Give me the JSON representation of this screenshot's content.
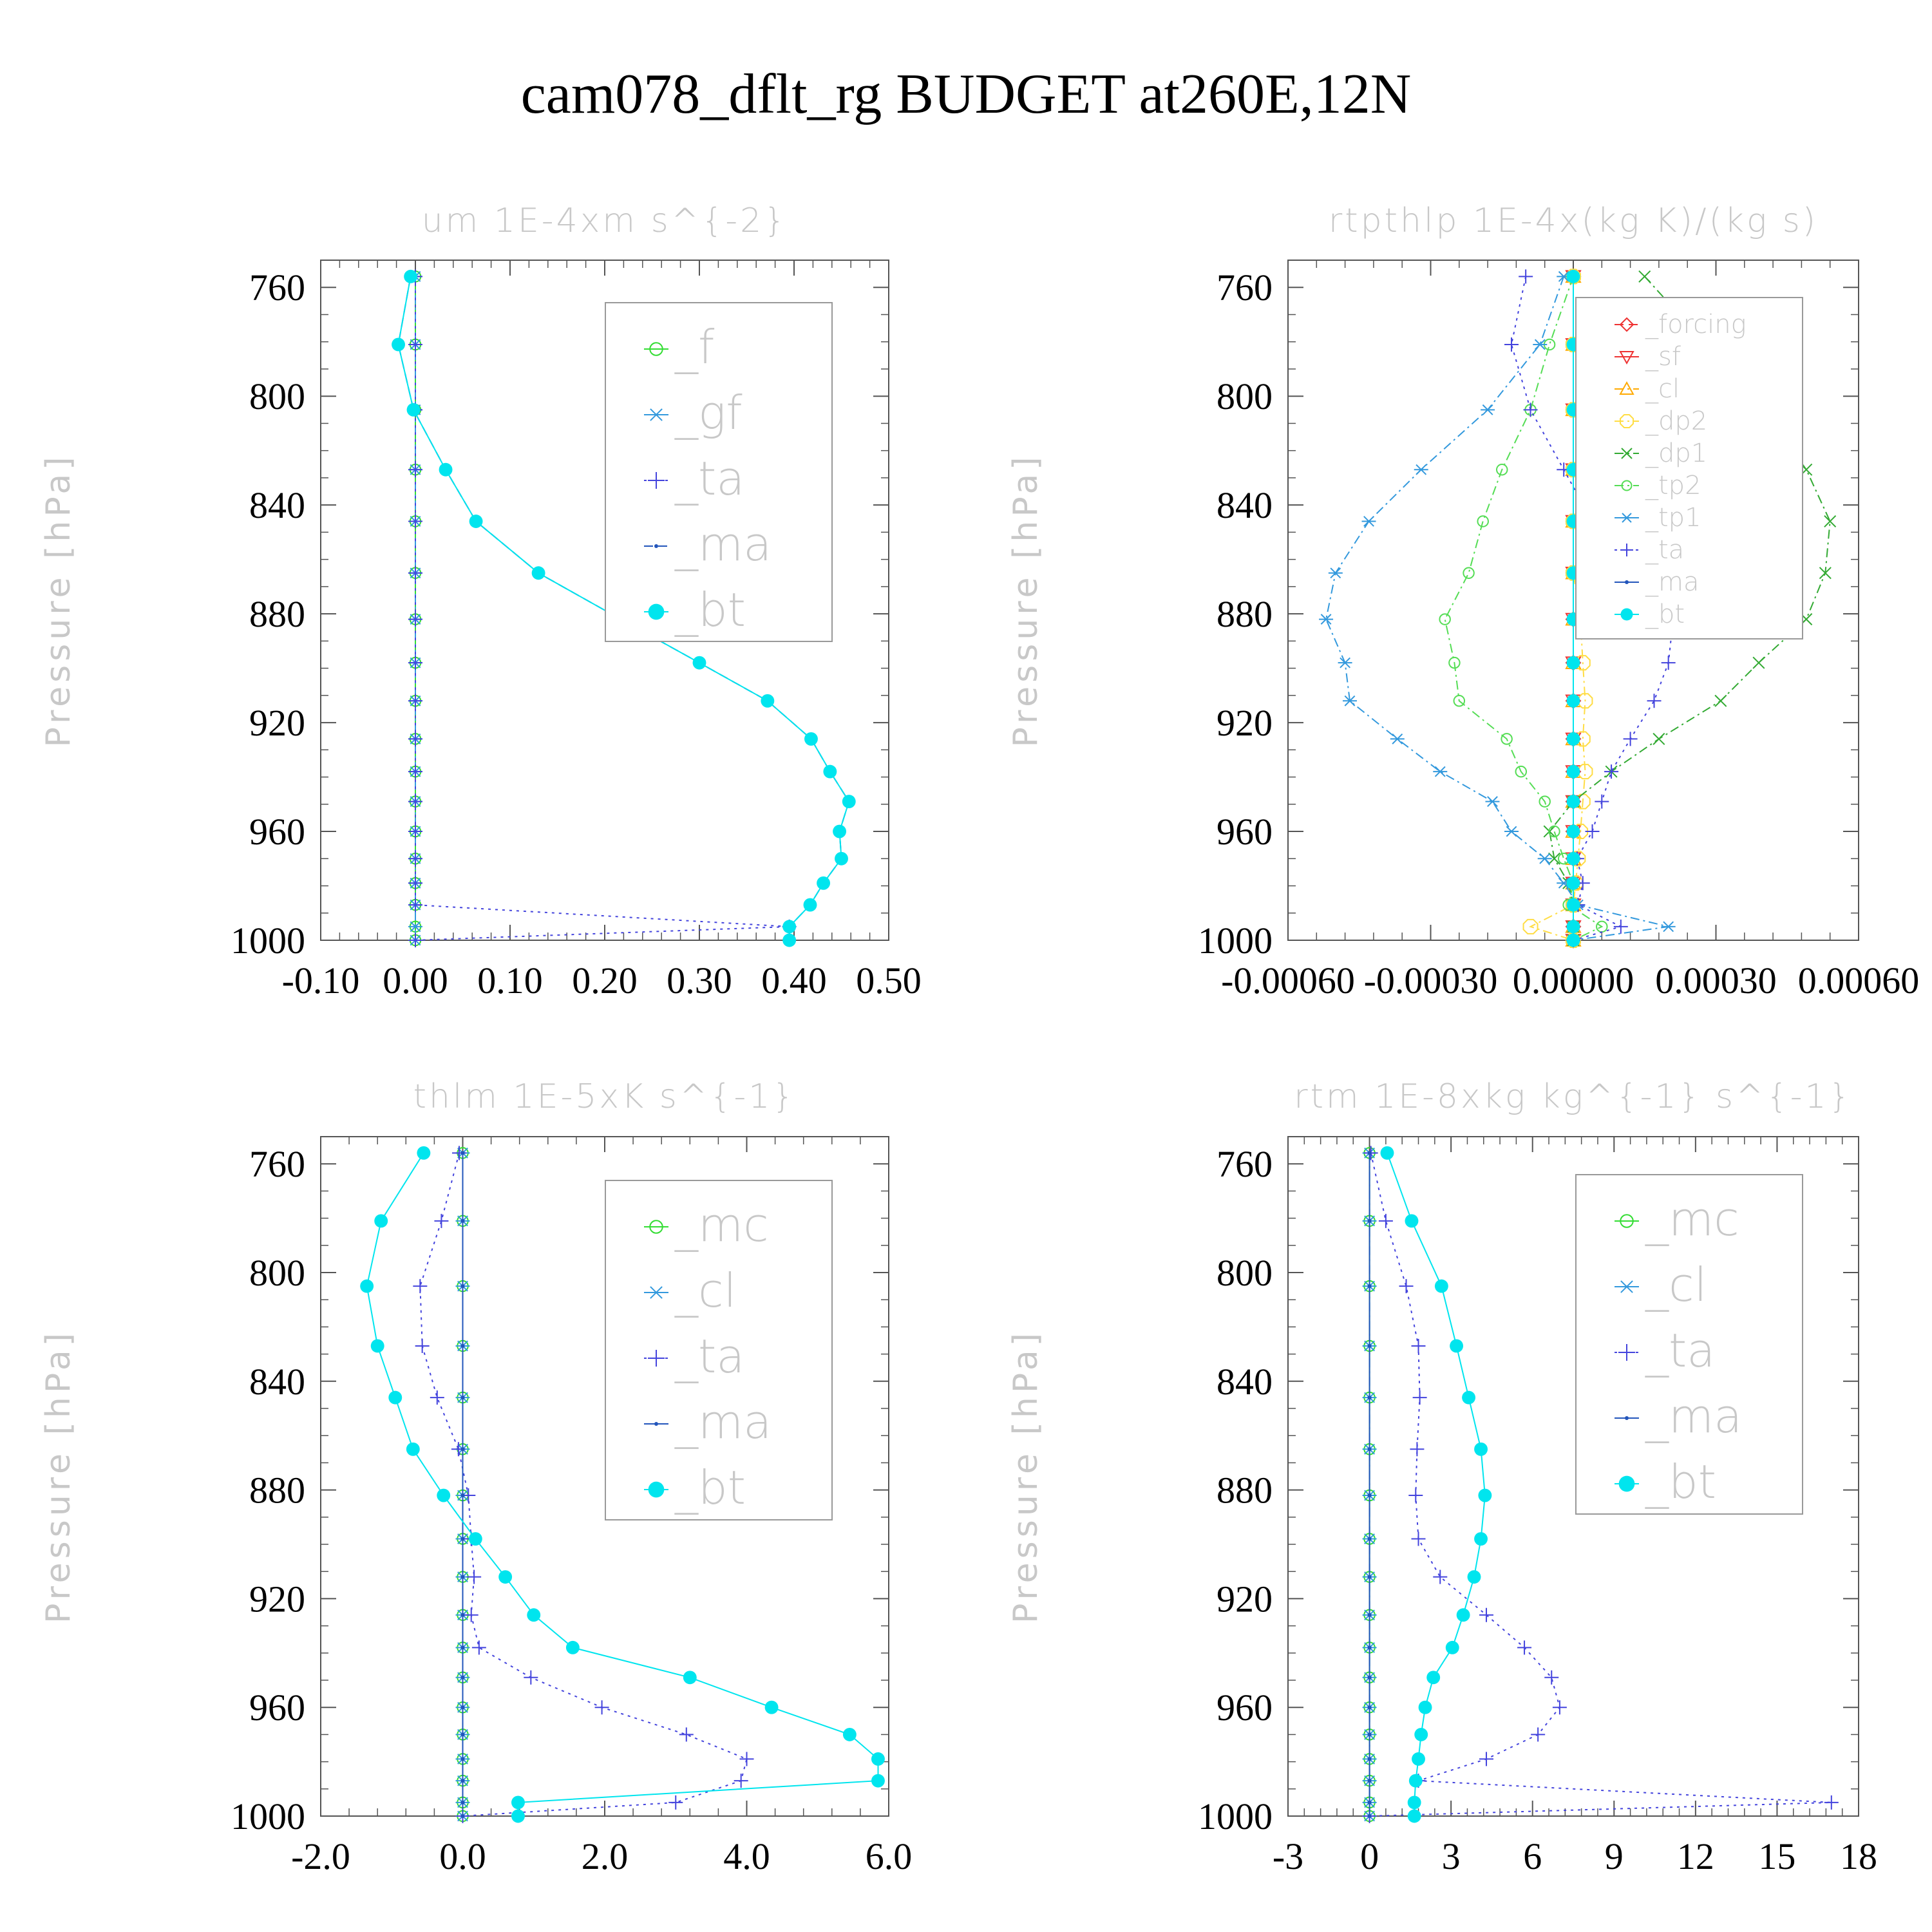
{
  "title": "cam078_dflt_rg  BUDGET at260E,12N",
  "chart_data": [
    {
      "type": "line",
      "title": "um  1E-4xm s^{-2}",
      "ylabel": "Pressure [hPa]",
      "xlim": [
        -0.1,
        0.5
      ],
      "ylim": [
        1000,
        750
      ],
      "xticks": [
        "-0.10",
        "0.00",
        "0.10",
        "0.20",
        "0.30",
        "0.40",
        "0.50"
      ],
      "yticks": [
        "760",
        "800",
        "840",
        "880",
        "920",
        "960",
        "1000"
      ],
      "legend": "top-right",
      "pressure": [
        756,
        781,
        805,
        827,
        846,
        865,
        882,
        898,
        912,
        926,
        938,
        949,
        960,
        970,
        979,
        987,
        995,
        1000
      ],
      "series": [
        {
          "name": "_f",
          "color": "#33dd33",
          "marker": "circle-open",
          "dash": "none",
          "values": [
            0,
            0,
            0,
            0,
            0,
            0,
            0,
            0,
            0,
            0,
            0,
            0,
            0,
            0,
            0,
            0,
            0,
            0
          ]
        },
        {
          "name": "_gf",
          "color": "#3399dd",
          "marker": "asterisk",
          "dash": "dashdot",
          "values": [
            0,
            0,
            0,
            0,
            0,
            0,
            0,
            0,
            0,
            0,
            0,
            0,
            0,
            0,
            0,
            0,
            0,
            0
          ]
        },
        {
          "name": "_ta",
          "color": "#4444dd",
          "marker": "plus",
          "dash": "dot",
          "values": [
            0,
            0,
            0,
            0,
            0,
            0,
            0,
            0,
            0,
            0,
            0,
            0,
            0,
            0,
            0,
            0,
            0.395,
            0
          ]
        },
        {
          "name": "_ma",
          "color": "#2255bb",
          "marker": "dot",
          "dash": "dash",
          "values": [
            -0.005,
            -0.018,
            -0.002,
            0.032,
            0.064,
            0.13,
            0.217,
            0.3,
            0.372,
            0.418,
            0.438,
            0.458,
            0.448,
            0.45,
            0.431,
            0.417,
            0.395,
            0.395
          ]
        },
        {
          "name": "_bt",
          "color": "#00e5ee",
          "marker": "disc",
          "dash": "none",
          "values": [
            -0.005,
            -0.018,
            -0.002,
            0.032,
            0.064,
            0.13,
            0.217,
            0.3,
            0.372,
            0.418,
            0.438,
            0.458,
            0.448,
            0.45,
            0.431,
            0.417,
            0.395,
            0.395
          ]
        }
      ]
    },
    {
      "type": "line",
      "title": "rtpthlp  1E-4x(kg K)/(kg s)",
      "ylabel": "Pressure [hPa]",
      "xlim": [
        -0.0006,
        0.0006
      ],
      "ylim": [
        1000,
        750
      ],
      "xticks": [
        "-0.00060",
        "-0.00030",
        "0.00000",
        "0.00030",
        "0.00060"
      ],
      "yticks": [
        "760",
        "800",
        "840",
        "880",
        "920",
        "960",
        "1000"
      ],
      "legend": "top-right",
      "pressure": [
        756,
        781,
        805,
        827,
        846,
        865,
        882,
        898,
        912,
        926,
        938,
        949,
        960,
        970,
        979,
        987,
        995,
        1000
      ],
      "series": [
        {
          "name": "_forcing",
          "color": "#ee3333",
          "marker": "diamond",
          "dash": "dash",
          "values": [
            0,
            0,
            0,
            0,
            0,
            0,
            0,
            0,
            0,
            0,
            0,
            0,
            0,
            0,
            0,
            0,
            0,
            0
          ]
        },
        {
          "name": "_sf",
          "color": "#ee3333",
          "marker": "triangle-down",
          "dash": "none",
          "values": [
            0,
            0,
            0,
            0,
            0,
            0,
            0,
            0,
            0,
            0,
            0,
            0,
            0,
            0,
            0,
            0,
            0,
            0
          ]
        },
        {
          "name": "_cl",
          "color": "#ffaa00",
          "marker": "triangle-up",
          "dash": "dashdot",
          "values": [
            0,
            0,
            0,
            0,
            0,
            0,
            0,
            0,
            0,
            0,
            0,
            0,
            0,
            0,
            0,
            0,
            0,
            0
          ]
        },
        {
          "name": "_dp2",
          "color": "#ffdd44",
          "marker": "octagon",
          "dash": "dashdot",
          "values": [
            0,
            0,
            0,
            0,
            0,
            0,
            1.5e-05,
            2e-05,
            2.5e-05,
            2e-05,
            2.5e-05,
            2e-05,
            1.5e-05,
            1e-05,
            5e-06,
            0,
            -9e-05,
            0
          ]
        },
        {
          "name": "_dp1",
          "color": "#33aa33",
          "marker": "cross",
          "dash": "dashdot",
          "values": [
            0.00015,
            0.00028,
            0.0004,
            0.00049,
            0.00054,
            0.00053,
            0.00049,
            0.00039,
            0.00031,
            0.00018,
            8e-05,
            0,
            -5e-05,
            -4e-05,
            -1e-05,
            0,
            0,
            0
          ]
        },
        {
          "name": "_tp2",
          "color": "#55dd55",
          "marker": "circle-open",
          "dash": "dashdot",
          "values": [
            0,
            -5e-05,
            -9e-05,
            -0.00015,
            -0.00019,
            -0.00022,
            -0.00027,
            -0.00025,
            -0.00024,
            -0.00014,
            -0.00011,
            -6e-05,
            -4e-05,
            -2e-05,
            0,
            -1e-05,
            6e-05,
            0
          ]
        },
        {
          "name": "_tp1",
          "color": "#3399dd",
          "marker": "asterisk",
          "dash": "dashdot",
          "values": [
            -2e-05,
            -7e-05,
            -0.00018,
            -0.00032,
            -0.00043,
            -0.0005,
            -0.00052,
            -0.00048,
            -0.00047,
            -0.00037,
            -0.00028,
            -0.00017,
            -0.00013,
            -6e-05,
            -2e-05,
            1e-05,
            0.0002,
            0
          ]
        },
        {
          "name": "_ta",
          "color": "#4444dd",
          "marker": "plus",
          "dash": "dot",
          "values": [
            -0.0001,
            -0.00013,
            -9e-05,
            -2e-05,
            4e-05,
            0.0002,
            0.00021,
            0.0002,
            0.00017,
            0.00012,
            8e-05,
            6e-05,
            4e-05,
            8e-06,
            2e-05,
            1e-05,
            0.0001,
            0
          ]
        },
        {
          "name": "_ma",
          "color": "#2255bb",
          "marker": "dot",
          "dash": "none",
          "values": [
            0,
            0,
            0,
            0,
            0,
            0,
            0,
            0,
            0,
            0,
            0,
            0,
            0,
            0,
            0,
            0,
            0,
            0
          ]
        },
        {
          "name": "_bt",
          "color": "#00e5ee",
          "marker": "disc",
          "dash": "none",
          "values": [
            0,
            0,
            0,
            0,
            0,
            0,
            0,
            0,
            0,
            0,
            0,
            0,
            0,
            0,
            0,
            0,
            0,
            0
          ]
        }
      ]
    },
    {
      "type": "line",
      "title": "thlm  1E-5xK s^{-1}",
      "ylabel": "Pressure [hPa]",
      "xlim": [
        -2.0,
        6.0
      ],
      "ylim": [
        1000,
        750
      ],
      "xticks": [
        "-2.0",
        "0.0",
        "2.0",
        "4.0",
        "6.0"
      ],
      "yticks": [
        "760",
        "800",
        "840",
        "880",
        "920",
        "960",
        "1000"
      ],
      "legend": "top-right",
      "pressure": [
        756,
        781,
        805,
        827,
        846,
        865,
        882,
        898,
        912,
        926,
        938,
        949,
        960,
        970,
        979,
        987,
        995,
        1000
      ],
      "series": [
        {
          "name": "_mc",
          "color": "#33dd33",
          "marker": "circle-open",
          "dash": "none",
          "values": [
            0,
            0,
            0,
            0,
            0,
            0,
            0,
            0,
            0,
            0,
            0,
            0,
            0,
            0,
            0,
            0,
            0,
            0
          ]
        },
        {
          "name": "_cl",
          "color": "#3399dd",
          "marker": "asterisk",
          "dash": "dashdot",
          "values": [
            0,
            0,
            0,
            0,
            0,
            0,
            0,
            0,
            0,
            0,
            0,
            0,
            0,
            0,
            0,
            0,
            0,
            0
          ]
        },
        {
          "name": "_ta",
          "color": "#4444dd",
          "marker": "plus",
          "dash": "dot",
          "values": [
            -0.05,
            -0.3,
            -0.6,
            -0.57,
            -0.36,
            -0.06,
            0.08,
            0.12,
            0.16,
            0.12,
            0.23,
            0.96,
            1.96,
            3.15,
            4.0,
            3.92,
            3.0,
            0
          ]
        },
        {
          "name": "_ma",
          "color": "#2255bb",
          "marker": "dot",
          "dash": "none",
          "values": [
            0,
            0,
            0,
            0,
            0,
            0,
            0,
            0,
            0,
            0,
            0,
            0,
            0,
            0,
            0,
            0,
            0,
            0
          ]
        },
        {
          "name": "_bt",
          "color": "#00e5ee",
          "marker": "disc",
          "dash": "none",
          "values": [
            -0.55,
            -1.15,
            -1.35,
            -1.2,
            -0.95,
            -0.7,
            -0.27,
            0.18,
            0.6,
            1.0,
            1.55,
            3.2,
            4.35,
            5.45,
            5.85,
            5.85,
            0.78,
            0.78
          ]
        }
      ]
    },
    {
      "type": "line",
      "title": "rtm  1E-8xkg kg^{-1} s^{-1}",
      "ylabel": "Pressure [hPa]",
      "xlim": [
        -3,
        18
      ],
      "ylim": [
        1000,
        750
      ],
      "xticks": [
        "-3",
        "0",
        "3",
        "6",
        "9",
        "12",
        "15",
        "18"
      ],
      "yticks": [
        "760",
        "800",
        "840",
        "880",
        "920",
        "960",
        "1000"
      ],
      "legend": "top-right",
      "pressure": [
        756,
        781,
        805,
        827,
        846,
        865,
        882,
        898,
        912,
        926,
        938,
        949,
        960,
        970,
        979,
        987,
        995,
        1000
      ],
      "series": [
        {
          "name": "_mc",
          "color": "#33dd33",
          "marker": "circle-open",
          "dash": "none",
          "values": [
            0,
            0,
            0,
            0,
            0,
            0,
            0,
            0,
            0,
            0,
            0,
            0,
            0,
            0,
            0,
            0,
            0,
            0
          ]
        },
        {
          "name": "_cl",
          "color": "#3399dd",
          "marker": "asterisk",
          "dash": "dashdot",
          "values": [
            0,
            0,
            0,
            0,
            0,
            0,
            0,
            0,
            0,
            0,
            0,
            0,
            0,
            0,
            0,
            0,
            0,
            0
          ]
        },
        {
          "name": "_ta",
          "color": "#4444dd",
          "marker": "plus",
          "dash": "dot",
          "values": [
            0.05,
            0.6,
            1.35,
            1.8,
            1.85,
            1.75,
            1.7,
            1.8,
            2.6,
            4.3,
            5.7,
            6.7,
            7.0,
            6.2,
            4.3,
            1.8,
            17.0,
            0
          ]
        },
        {
          "name": "_ma",
          "color": "#2255bb",
          "marker": "dot",
          "dash": "none",
          "values": [
            0,
            0,
            0,
            0,
            0,
            0,
            0,
            0,
            0,
            0,
            0,
            0,
            0,
            0,
            0,
            0,
            0,
            0
          ]
        },
        {
          "name": "_bt",
          "color": "#00e5ee",
          "marker": "disc",
          "dash": "none",
          "values": [
            0.65,
            1.55,
            2.65,
            3.2,
            3.65,
            4.1,
            4.25,
            4.1,
            3.85,
            3.45,
            3.05,
            2.35,
            2.05,
            1.9,
            1.8,
            1.7,
            1.65,
            1.65
          ]
        }
      ]
    }
  ]
}
